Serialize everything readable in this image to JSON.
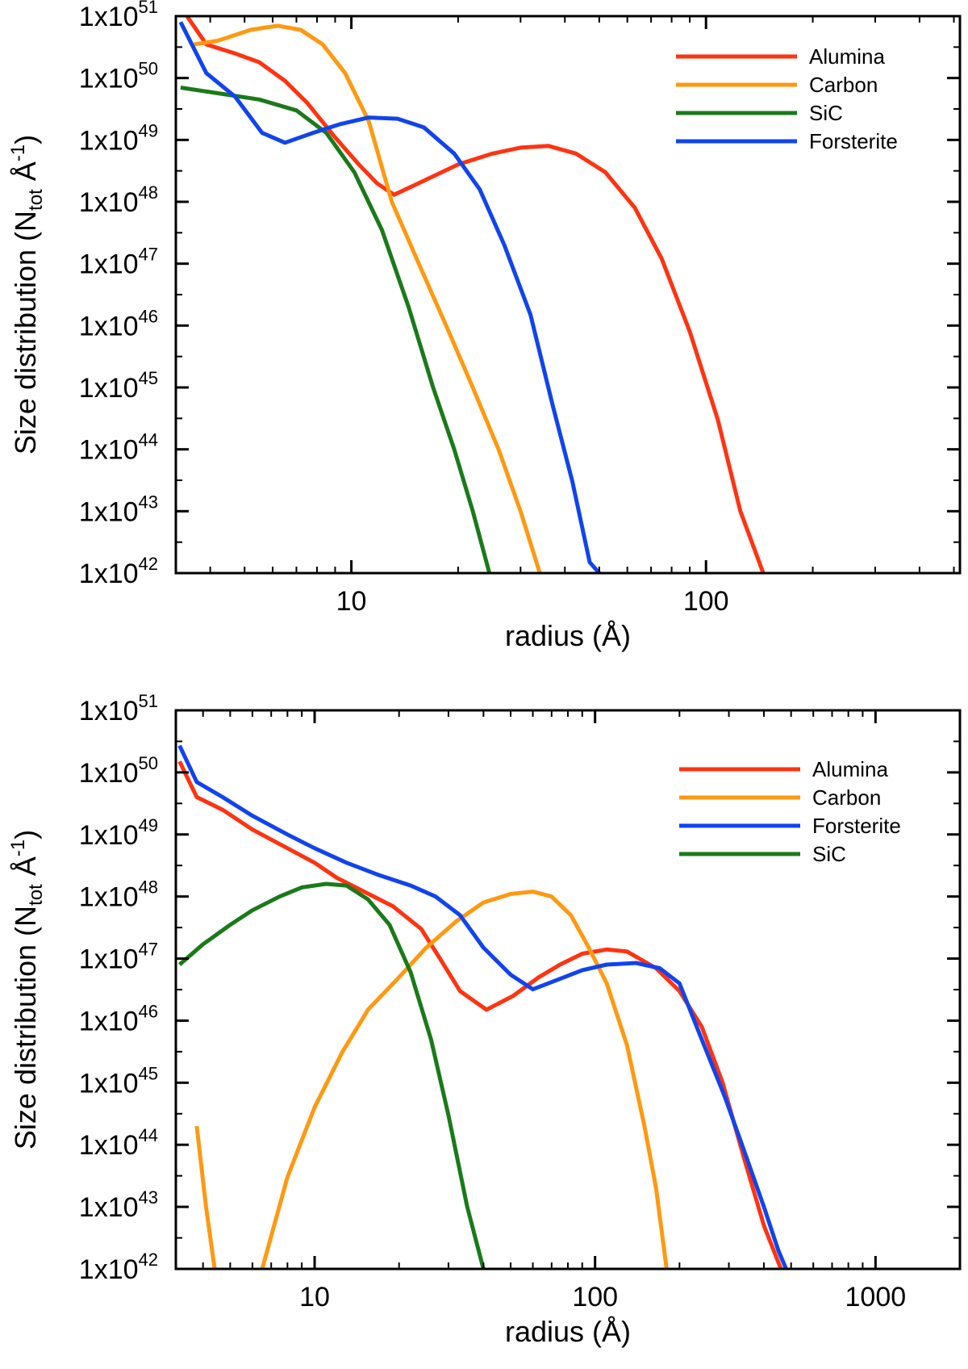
{
  "chart_data": [
    {
      "type": "line",
      "xscale": "log",
      "yscale": "log",
      "xlim": [
        3.2,
        520
      ],
      "ylim": [
        1e+42,
        1e+51
      ],
      "xlabel": "radius (Å)",
      "ylabel_main": "Size distribution (",
      "ylabel_sub_n": "N",
      "ylabel_sub": "tot",
      "ylabel_unit": " Å",
      "ylabel_sup": "-1",
      "ylabel_close": ")",
      "x_ticks": [
        {
          "value": 10,
          "label": "10"
        },
        {
          "value": 100,
          "label": "100"
        }
      ],
      "y_tick_mantissa": "1x10",
      "y_tick_exponents": [
        "42",
        "43",
        "44",
        "45",
        "46",
        "47",
        "48",
        "49",
        "50",
        "51"
      ],
      "legend_position": "top-right",
      "series": [
        {
          "name": "Alumina",
          "color": "#ff3311",
          "points": [
            [
              3.4,
              1.1e+51
            ],
            [
              3.9,
              3.5e+50
            ],
            [
              4.7,
              2.5e+50
            ],
            [
              5.5,
              1.8e+50
            ],
            [
              6.5,
              9e+49
            ],
            [
              7.5,
              4e+49
            ],
            [
              9,
              1.1e+49
            ],
            [
              10.5,
              4e+48
            ],
            [
              11.8,
              2e+48
            ],
            [
              13.2,
              1.3e+48
            ],
            [
              15.5,
              2e+48
            ],
            [
              20,
              4e+48
            ],
            [
              25,
              6e+48
            ],
            [
              30,
              7.5e+48
            ],
            [
              36,
              8e+48
            ],
            [
              43,
              6e+48
            ],
            [
              52,
              3e+48
            ],
            [
              63,
              8e+47
            ],
            [
              75,
              1.2e+47
            ],
            [
              90,
              8e+45
            ],
            [
              108,
              3e+44
            ],
            [
              125,
              1e+43
            ],
            [
              145,
              1e+42
            ]
          ]
        },
        {
          "name": "Carbon",
          "color": "#ff9911",
          "points": [
            [
              3.6,
              3.5e+50
            ],
            [
              4.2,
              4e+50
            ],
            [
              5.2,
              6e+50
            ],
            [
              6.2,
              7e+50
            ],
            [
              7.2,
              6e+50
            ],
            [
              8.3,
              3.5e+50
            ],
            [
              9.6,
              1.2e+50
            ],
            [
              11.2,
              2e+49
            ],
            [
              13,
              1e+48
            ],
            [
              15.5,
              1e+47
            ],
            [
              18.5,
              1e+46
            ],
            [
              22,
              1e+45
            ],
            [
              26,
              1e+44
            ],
            [
              30,
              1e+43
            ],
            [
              34,
              1e+42
            ]
          ]
        },
        {
          "name": "SiC",
          "color": "#1a7a1a",
          "points": [
            [
              3.3,
              7e+49
            ],
            [
              5.5,
              4.5e+49
            ],
            [
              7,
              3e+49
            ],
            [
              8.5,
              1.3e+49
            ],
            [
              10.2,
              3e+48
            ],
            [
              12.2,
              3.5e+47
            ],
            [
              14.5,
              2e+46
            ],
            [
              17,
              1e+45
            ],
            [
              19.5,
              1e+44
            ],
            [
              22,
              1e+43
            ],
            [
              24.5,
              1e+42
            ]
          ]
        },
        {
          "name": "Forsterite",
          "color": "#1144ee",
          "points": [
            [
              3.3,
              8e+50
            ],
            [
              3.9,
              1.2e+50
            ],
            [
              4.7,
              5e+49
            ],
            [
              5.6,
              1.3e+49
            ],
            [
              6.5,
              9e+48
            ],
            [
              7.8,
              1.3e+49
            ],
            [
              9.3,
              1.8e+49
            ],
            [
              11.2,
              2.3e+49
            ],
            [
              13.5,
              2.2e+49
            ],
            [
              16,
              1.6e+49
            ],
            [
              19.5,
              6e+48
            ],
            [
              23,
              1.6e+48
            ],
            [
              27,
              2e+47
            ],
            [
              32,
              1.5e+46
            ],
            [
              37,
              5e+44
            ],
            [
              42,
              3e+43
            ],
            [
              47,
              1.5e+42
            ],
            [
              50,
              1e+42
            ]
          ]
        }
      ]
    },
    {
      "type": "line",
      "xscale": "log",
      "yscale": "log",
      "xlim": [
        3.2,
        2000
      ],
      "ylim": [
        1e+42,
        1e+51
      ],
      "xlabel": "radius (Å)",
      "ylabel_main": "Size distribution (",
      "ylabel_sub_n": "N",
      "ylabel_sub": "tot",
      "ylabel_unit": " Å",
      "ylabel_sup": "-1",
      "ylabel_close": ")",
      "x_ticks": [
        {
          "value": 10,
          "label": "10"
        },
        {
          "value": 100,
          "label": "100"
        },
        {
          "value": 1000,
          "label": "1000"
        }
      ],
      "y_tick_mantissa": "1x10",
      "y_tick_exponents": [
        "42",
        "43",
        "44",
        "45",
        "46",
        "47",
        "48",
        "49",
        "50",
        "51"
      ],
      "legend_position": "top-right",
      "series": [
        {
          "name": "Alumina",
          "color": "#ff3311",
          "points": [
            [
              3.3,
              1.5e+50
            ],
            [
              3.8,
              4e+49
            ],
            [
              4.7,
              2.5e+49
            ],
            [
              6,
              1.2e+49
            ],
            [
              8,
              6e+48
            ],
            [
              10,
              3.5e+48
            ],
            [
              12,
              2e+48
            ],
            [
              15,
              1.2e+48
            ],
            [
              19,
              7e+47
            ],
            [
              24,
              3e+47
            ],
            [
              28,
              1e+47
            ],
            [
              33,
              3e+46
            ],
            [
              41,
              1.5e+46
            ],
            [
              51,
              2.5e+46
            ],
            [
              63,
              5e+46
            ],
            [
              75,
              8e+46
            ],
            [
              90,
              1.2e+47
            ],
            [
              110,
              1.4e+47
            ],
            [
              130,
              1.3e+47
            ],
            [
              165,
              7e+46
            ],
            [
              200,
              3e+46
            ],
            [
              240,
              8e+45
            ],
            [
              285,
              1e+45
            ],
            [
              340,
              6e+43
            ],
            [
              400,
              5e+42
            ],
            [
              460,
              1e+42
            ]
          ]
        },
        {
          "name": "Carbon",
          "color": "#ff9911",
          "points": [
            [
              3.8,
              2e+44
            ],
            [
              4.1,
              1e+43
            ],
            [
              4.4,
              1e+42
            ],
            null,
            [
              6.5,
              1e+42
            ],
            [
              8,
              3e+43
            ],
            [
              10,
              4e+44
            ],
            [
              12.5,
              3e+45
            ],
            [
              15.5,
              1.5e+46
            ],
            [
              20,
              5e+46
            ],
            [
              25,
              1.5e+47
            ],
            [
              32,
              4e+47
            ],
            [
              40,
              8e+47
            ],
            [
              50,
              1.1e+48
            ],
            [
              60,
              1.2e+48
            ],
            [
              70,
              1e+48
            ],
            [
              82,
              5e+47
            ],
            [
              95,
              1.5e+47
            ],
            [
              110,
              4e+46
            ],
            [
              130,
              4e+45
            ],
            [
              150,
              2e+44
            ],
            [
              165,
              2e+43
            ],
            [
              180,
              1e+42
            ]
          ]
        },
        {
          "name": "Forsterite",
          "color": "#1144ee",
          "points": [
            [
              3.3,
              2.7e+50
            ],
            [
              3.8,
              7e+49
            ],
            [
              4.7,
              4e+49
            ],
            [
              6,
              2e+49
            ],
            [
              8,
              1e+49
            ],
            [
              10,
              6e+48
            ],
            [
              13,
              3.5e+48
            ],
            [
              17,
              2.2e+48
            ],
            [
              22,
              1.5e+48
            ],
            [
              27,
              1e+48
            ],
            [
              33,
              5e+47
            ],
            [
              40,
              1.5e+47
            ],
            [
              50,
              5.5e+46
            ],
            [
              60,
              3.2e+46
            ],
            [
              73,
              4.5e+46
            ],
            [
              90,
              6.5e+46
            ],
            [
              110,
              8e+46
            ],
            [
              140,
              8.5e+46
            ],
            [
              170,
              7e+46
            ],
            [
              200,
              4e+46
            ],
            [
              240,
              5e+45
            ],
            [
              290,
              6e+44
            ],
            [
              340,
              8e+43
            ],
            [
              400,
              1e+43
            ],
            [
              450,
              2e+42
            ],
            [
              480,
              1e+42
            ]
          ]
        },
        {
          "name": "SiC",
          "color": "#1a7a1a",
          "points": [
            [
              3.3,
              8e+46
            ],
            [
              4,
              1.7e+47
            ],
            [
              5,
              3.5e+47
            ],
            [
              6,
              6e+47
            ],
            [
              7.5,
              1e+48
            ],
            [
              9,
              1.4e+48
            ],
            [
              11,
              1.6e+48
            ],
            [
              13,
              1.5e+48
            ],
            [
              15.5,
              9e+47
            ],
            [
              18.5,
              3.5e+47
            ],
            [
              22,
              6e+46
            ],
            [
              26,
              5e+45
            ],
            [
              30,
              3e+44
            ],
            [
              35,
              1e+43
            ],
            [
              40,
              1e+42
            ]
          ]
        }
      ]
    }
  ]
}
